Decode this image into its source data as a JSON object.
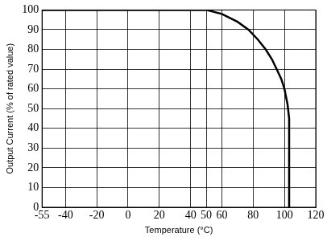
{
  "chart_data": {
    "type": "line",
    "xlabel": "Temperature (°C)",
    "ylabel": "Output Current (% of rated value)",
    "x": [
      -55,
      50,
      60,
      70,
      77,
      83,
      88,
      92,
      95,
      98,
      100,
      102,
      103,
      103
    ],
    "values": [
      100,
      100,
      98,
      94,
      90,
      85,
      80,
      75,
      70,
      65,
      60,
      52,
      45,
      0
    ],
    "color": "#000000",
    "xlim": [
      -55,
      120
    ],
    "ylim": [
      0,
      100
    ],
    "xticks": [
      -55,
      -40,
      -20,
      0,
      20,
      40,
      50,
      60,
      80,
      100,
      120
    ],
    "yticks": [
      0,
      10,
      20,
      30,
      40,
      50,
      60,
      70,
      80,
      90,
      100
    ],
    "grid": true
  }
}
